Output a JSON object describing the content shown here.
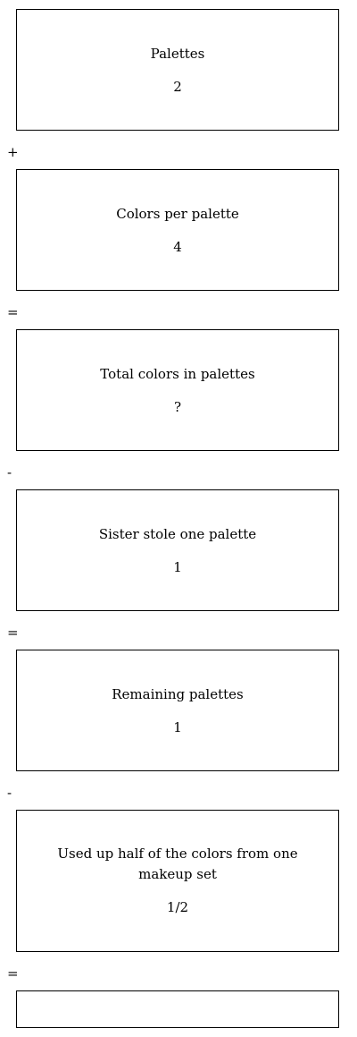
{
  "steps": [
    {
      "label": "Palettes",
      "value": "2"
    },
    {
      "label": "Colors per palette",
      "value": "4"
    },
    {
      "label": "Total colors in palettes",
      "value": "?"
    },
    {
      "label": "Sister stole one palette",
      "value": "1"
    },
    {
      "label": "Remaining palettes",
      "value": "1"
    },
    {
      "label": "Used up half of the colors from one makeup set",
      "value": "1/2"
    },
    {
      "label": "",
      "value": ""
    }
  ],
  "operators": [
    "+",
    "=",
    "-",
    "=",
    "-",
    "="
  ]
}
